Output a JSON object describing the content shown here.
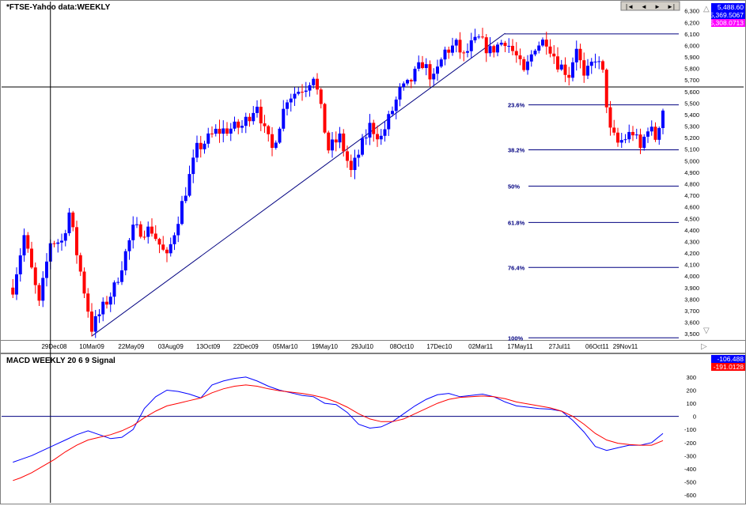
{
  "colors": {
    "up": "#0000ff",
    "down": "#ff0000",
    "macd": "#0000ff",
    "signal": "#ff0000",
    "grid": "#000080",
    "text": "#000000"
  },
  "price_panel": {
    "title": "*FTSE-Yahoo data:WEEKLY",
    "tag_high": "5,488.60",
    "tag_last": "5,369.5067",
    "tag_low": "5,308.0713",
    "tag_colors": [
      "#0000ff",
      "#0000ff",
      "#ff00ff"
    ]
  },
  "indicator_panel": {
    "title": "MACD WEEKLY 20 6 9 Signal",
    "tag_macd": "-106.488",
    "tag_signal": "-191.0128"
  },
  "nav_buttons": [
    {
      "name": "first-button",
      "label": "|◄"
    },
    {
      "name": "prev-button",
      "label": "◄"
    },
    {
      "name": "next-button",
      "label": "►"
    },
    {
      "name": "last-button",
      "label": "►|"
    }
  ],
  "chart_data": [
    {
      "type": "candlestick",
      "title": "*FTSE-Yahoo data:WEEKLY",
      "x_ticks": [
        "29Dec08",
        "10Mar09",
        "22May09",
        "03Aug09",
        "13Oct09",
        "22Dec09",
        "05Mar10",
        "19May10",
        "29Jul10",
        "08Oct10",
        "17Dec10",
        "02Mar11",
        "17May11",
        "27Jul11",
        "06Oct11",
        "29Nov11"
      ],
      "y_ticks": [
        "3,500",
        "3,600",
        "3,700",
        "3,800",
        "3,900",
        "4,000",
        "4,100",
        "4,200",
        "4,300",
        "4,400",
        "4,500",
        "4,600",
        "4,700",
        "4,800",
        "4,900",
        "5,000",
        "5,100",
        "5,200",
        "5,300",
        "5,400",
        "5,500",
        "5,600",
        "5,700",
        "5,800",
        "5,900",
        "6,000",
        "6,100",
        "6,200",
        "6,300"
      ],
      "ylim": [
        3460,
        6380
      ],
      "fibonacci": [
        {
          "label": "23.6%",
          "value": 5485
        },
        {
          "label": "38.2%",
          "value": 5095
        },
        {
          "label": "50%",
          "value": 4780
        },
        {
          "label": "61.8%",
          "value": 4465
        },
        {
          "label": "76.4%",
          "value": 4075
        },
        {
          "label": "100%",
          "value": 3465
        }
      ],
      "top_line_value": 6100,
      "horizontal_line_value": 5640,
      "trendline": [
        {
          "week": 0,
          "value": 3480
        },
        {
          "week": 110,
          "value": 6105
        }
      ],
      "vertical_marker_week": -11,
      "first_week": "10Mar09",
      "last_candle_week": 136,
      "anchors": [
        {
          "week": -21,
          "value": 3900
        },
        {
          "week": -18,
          "value": 4350
        },
        {
          "week": -14,
          "value": 3750
        },
        {
          "week": -11,
          "value": 4300
        },
        {
          "week": -8,
          "value": 4300
        },
        {
          "week": -6,
          "value": 4550
        },
        {
          "week": -4,
          "value": 4200
        },
        {
          "week": 0,
          "value": 3550
        },
        {
          "week": 6,
          "value": 3900
        },
        {
          "week": 11,
          "value": 4400
        },
        {
          "week": 16,
          "value": 4400
        },
        {
          "week": 20,
          "value": 4150
        },
        {
          "week": 28,
          "value": 5100
        },
        {
          "week": 33,
          "value": 5250
        },
        {
          "week": 40,
          "value": 5300
        },
        {
          "week": 44,
          "value": 5500
        },
        {
          "week": 46,
          "value": 5250
        },
        {
          "week": 48,
          "value": 5100
        },
        {
          "week": 52,
          "value": 5550
        },
        {
          "week": 57,
          "value": 5650
        },
        {
          "week": 59,
          "value": 5750
        },
        {
          "week": 60,
          "value": 5600
        },
        {
          "week": 63,
          "value": 5100
        },
        {
          "week": 66,
          "value": 5200
        },
        {
          "week": 69,
          "value": 4900
        },
        {
          "week": 74,
          "value": 5300
        },
        {
          "week": 77,
          "value": 5200
        },
        {
          "week": 82,
          "value": 5600
        },
        {
          "week": 84,
          "value": 5650
        },
        {
          "week": 88,
          "value": 5850
        },
        {
          "week": 91,
          "value": 5700
        },
        {
          "week": 94,
          "value": 5950
        },
        {
          "week": 97,
          "value": 6000
        },
        {
          "week": 99,
          "value": 5900
        },
        {
          "week": 101,
          "value": 6000
        },
        {
          "week": 103,
          "value": 6050
        },
        {
          "week": 106,
          "value": 5950
        },
        {
          "week": 108,
          "value": 6000
        },
        {
          "week": 110,
          "value": 6050
        },
        {
          "week": 113,
          "value": 5900
        },
        {
          "week": 115,
          "value": 5750
        },
        {
          "week": 118,
          "value": 6000
        },
        {
          "week": 121,
          "value": 6050
        },
        {
          "week": 124,
          "value": 5850
        },
        {
          "week": 127,
          "value": 5750
        },
        {
          "week": 129,
          "value": 6000
        },
        {
          "week": 131,
          "value": 5700
        },
        {
          "week": 134,
          "value": 5900
        },
        {
          "week": 136,
          "value": 5750
        },
        {
          "week": 138,
          "value": 5250
        },
        {
          "week": 140,
          "value": 5150
        },
        {
          "week": 142,
          "value": 5200
        },
        {
          "week": 144,
          "value": 5250
        },
        {
          "week": 146,
          "value": 5100
        },
        {
          "week": 148,
          "value": 5300
        },
        {
          "week": 150,
          "value": 5200
        },
        {
          "week": 152,
          "value": 5450
        }
      ]
    },
    {
      "type": "line",
      "title": "MACD WEEKLY 20 6 9 Signal",
      "y_ticks": [
        "-600",
        "-500",
        "-400",
        "-300",
        "-200",
        "-100",
        "0",
        "100",
        "200",
        "300"
      ],
      "ylim": [
        -660,
        390
      ],
      "zero_line": 0,
      "series": [
        {
          "name": "MACD",
          "points": [
            [
              -21,
              -350
            ],
            [
              -19,
              -330
            ],
            [
              -16,
              -300
            ],
            [
              -13,
              -260
            ],
            [
              -10,
              -220
            ],
            [
              -7,
              -180
            ],
            [
              -4,
              -140
            ],
            [
              -1,
              -110
            ],
            [
              2,
              -140
            ],
            [
              5,
              -170
            ],
            [
              8,
              -160
            ],
            [
              11,
              -100
            ],
            [
              14,
              60
            ],
            [
              17,
              150
            ],
            [
              20,
              200
            ],
            [
              23,
              190
            ],
            [
              26,
              170
            ],
            [
              29,
              140
            ],
            [
              32,
              240
            ],
            [
              35,
              270
            ],
            [
              38,
              290
            ],
            [
              41,
              300
            ],
            [
              44,
              270
            ],
            [
              47,
              230
            ],
            [
              50,
              200
            ],
            [
              53,
              180
            ],
            [
              56,
              160
            ],
            [
              59,
              150
            ],
            [
              62,
              100
            ],
            [
              65,
              90
            ],
            [
              68,
              30
            ],
            [
              71,
              -60
            ],
            [
              74,
              -90
            ],
            [
              77,
              -80
            ],
            [
              80,
              -40
            ],
            [
              83,
              20
            ],
            [
              86,
              80
            ],
            [
              89,
              130
            ],
            [
              92,
              165
            ],
            [
              95,
              175
            ],
            [
              98,
              150
            ],
            [
              101,
              160
            ],
            [
              104,
              170
            ],
            [
              107,
              150
            ],
            [
              110,
              110
            ],
            [
              113,
              80
            ],
            [
              116,
              70
            ],
            [
              119,
              60
            ],
            [
              122,
              55
            ],
            [
              125,
              40
            ],
            [
              128,
              -30
            ],
            [
              131,
              -120
            ],
            [
              134,
              -230
            ],
            [
              137,
              -260
            ],
            [
              140,
              -240
            ],
            [
              143,
              -220
            ],
            [
              146,
              -220
            ],
            [
              149,
              -200
            ],
            [
              152,
              -130
            ]
          ]
        },
        {
          "name": "Signal",
          "points": [
            [
              -21,
              -490
            ],
            [
              -19,
              -470
            ],
            [
              -16,
              -430
            ],
            [
              -13,
              -380
            ],
            [
              -10,
              -330
            ],
            [
              -7,
              -270
            ],
            [
              -4,
              -220
            ],
            [
              -1,
              -180
            ],
            [
              2,
              -160
            ],
            [
              5,
              -140
            ],
            [
              8,
              -110
            ],
            [
              11,
              -70
            ],
            [
              14,
              -10
            ],
            [
              17,
              40
            ],
            [
              20,
              80
            ],
            [
              23,
              100
            ],
            [
              26,
              120
            ],
            [
              29,
              140
            ],
            [
              32,
              180
            ],
            [
              35,
              210
            ],
            [
              38,
              230
            ],
            [
              41,
              240
            ],
            [
              44,
              230
            ],
            [
              47,
              210
            ],
            [
              50,
              195
            ],
            [
              53,
              185
            ],
            [
              56,
              175
            ],
            [
              59,
              160
            ],
            [
              62,
              140
            ],
            [
              65,
              110
            ],
            [
              68,
              70
            ],
            [
              71,
              20
            ],
            [
              74,
              -20
            ],
            [
              77,
              -40
            ],
            [
              80,
              -40
            ],
            [
              83,
              -20
            ],
            [
              86,
              20
            ],
            [
              89,
              60
            ],
            [
              92,
              100
            ],
            [
              95,
              130
            ],
            [
              98,
              145
            ],
            [
              101,
              150
            ],
            [
              104,
              155
            ],
            [
              107,
              150
            ],
            [
              110,
              135
            ],
            [
              113,
              110
            ],
            [
              116,
              95
            ],
            [
              119,
              80
            ],
            [
              122,
              65
            ],
            [
              125,
              40
            ],
            [
              128,
              0
            ],
            [
              131,
              -60
            ],
            [
              134,
              -130
            ],
            [
              137,
              -180
            ],
            [
              140,
              -205
            ],
            [
              143,
              -215
            ],
            [
              146,
              -220
            ],
            [
              149,
              -220
            ],
            [
              152,
              -185
            ]
          ]
        }
      ]
    }
  ]
}
